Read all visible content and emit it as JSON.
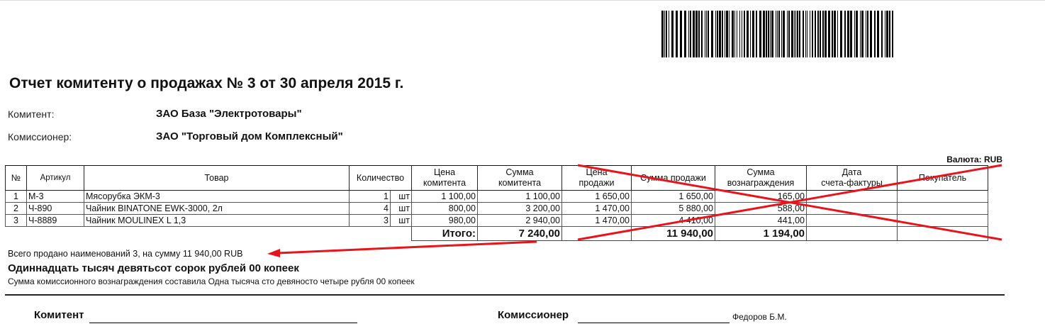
{
  "title": "Отчет комитенту о продажах № 3 от 30 апреля 2015 г.",
  "parties": {
    "komitent_label": "Комитент:",
    "komitent_value": "ЗАО База \"Электротовары\"",
    "komissioner_label": "Комиссионер:",
    "komissioner_value": "ЗАО \"Торговый дом Комплексный\""
  },
  "currency": "Валюта: RUB",
  "table": {
    "headers": [
      "№",
      "Артикул",
      "Товар",
      "Количество",
      "Цена\nкомитента",
      "Сумма\nкомитента",
      "Цена\nпродажи",
      "Сумма продажи",
      "Сумма\nвознаграждения",
      "Дата\nсчета-фактуры",
      "Покупатель"
    ],
    "rows": [
      {
        "n": "1",
        "art": "М-3",
        "item": "Мясорубка ЭКМ-3",
        "qty": "1",
        "unit": "шт",
        "price_k": "1 100,00",
        "sum_k": "1 100,00",
        "price_s": "1 650,00",
        "sum_s": "1 650,00",
        "reward": "165,00",
        "date": "",
        "buyer": ""
      },
      {
        "n": "2",
        "art": "Ч-890",
        "item": "Чайник BINATONE  EWK-3000,  2л",
        "qty": "4",
        "unit": "шт",
        "price_k": "800,00",
        "sum_k": "3 200,00",
        "price_s": "1 470,00",
        "sum_s": "5 880,00",
        "reward": "588,00",
        "date": "",
        "buyer": ""
      },
      {
        "n": "3",
        "art": "Ч-8889",
        "item": "Чайник MOULINEX L 1,3",
        "qty": "3",
        "unit": "шт",
        "price_k": "980,00",
        "sum_k": "2 940,00",
        "price_s": "1 470,00",
        "sum_s": "4 410,00",
        "reward": "441,00",
        "date": "",
        "buyer": ""
      }
    ],
    "total_label": "Итого:",
    "total_sum_k": "7 240,00",
    "total_sum_s": "11 940,00",
    "total_reward": "1 194,00"
  },
  "summary": {
    "line1": "Всего продано наименований 3, на сумму 11 940,00 RUB",
    "line2": "Одиннадцать тысяч девятьсот сорок рублей 00 копеек",
    "line3": "Сумма комиссионного вознаграждения составила Одна тысяча сто девяносто четыре рубля 00 копеек"
  },
  "signatures": {
    "komitent": "Комитент",
    "komissioner": "Комиссионер",
    "komissioner_name": "Федоров Б.М."
  },
  "annotation_color": "#e8141c"
}
